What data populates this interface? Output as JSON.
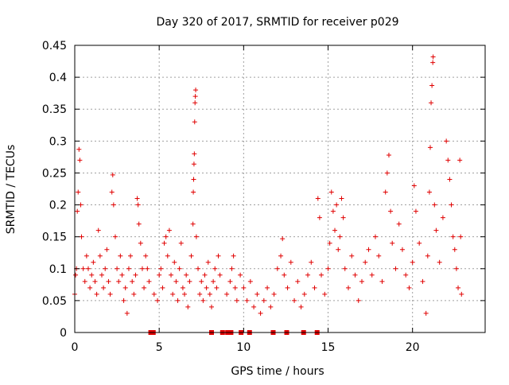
{
  "chart_data": {
    "type": "scatter",
    "title": "Day 320 of 2017, SRMTID for receiver p029",
    "xlabel": "GPS time / hours",
    "ylabel": "SRMTID / TECUs",
    "xlim": [
      0,
      24.3
    ],
    "ylim": [
      0,
      0.45
    ],
    "xticks": [
      0,
      5,
      10,
      15,
      20
    ],
    "xtick_labels": [
      "0",
      "5",
      "10",
      "15",
      "20"
    ],
    "yticks": [
      0,
      0.05,
      0.1,
      0.15,
      0.2,
      0.25,
      0.3,
      0.35,
      0.4,
      0.45
    ],
    "ytick_labels": [
      "0",
      "0.05",
      "0.1",
      "0.15",
      "0.2",
      "0.25",
      "0.3",
      "0.35",
      "0.4",
      "0.45"
    ],
    "grid": true,
    "marker": "+",
    "color": "#e00000",
    "series": [
      {
        "name": "SRMTID",
        "points": [
          [
            0.0,
            0.06
          ],
          [
            0.05,
            0.09
          ],
          [
            0.1,
            0.1
          ],
          [
            0.15,
            0.19
          ],
          [
            0.2,
            0.22
          ],
          [
            0.25,
            0.287
          ],
          [
            0.3,
            0.27
          ],
          [
            0.35,
            0.2
          ],
          [
            0.4,
            0.15
          ],
          [
            0.5,
            0.1
          ],
          [
            0.6,
            0.08
          ],
          [
            0.7,
            0.12
          ],
          [
            0.8,
            0.1
          ],
          [
            0.9,
            0.07
          ],
          [
            1.0,
            0.09
          ],
          [
            1.1,
            0.11
          ],
          [
            1.2,
            0.08
          ],
          [
            1.3,
            0.06
          ],
          [
            1.4,
            0.16
          ],
          [
            1.5,
            0.12
          ],
          [
            1.6,
            0.09
          ],
          [
            1.7,
            0.07
          ],
          [
            1.8,
            0.1
          ],
          [
            1.9,
            0.13
          ],
          [
            2.0,
            0.08
          ],
          [
            2.1,
            0.06
          ],
          [
            2.2,
            0.22
          ],
          [
            2.25,
            0.247
          ],
          [
            2.3,
            0.2
          ],
          [
            2.4,
            0.15
          ],
          [
            2.5,
            0.1
          ],
          [
            2.6,
            0.08
          ],
          [
            2.7,
            0.12
          ],
          [
            2.8,
            0.09
          ],
          [
            2.9,
            0.05
          ],
          [
            3.0,
            0.07
          ],
          [
            3.1,
            0.03
          ],
          [
            3.2,
            0.1
          ],
          [
            3.3,
            0.12
          ],
          [
            3.4,
            0.08
          ],
          [
            3.5,
            0.06
          ],
          [
            3.6,
            0.09
          ],
          [
            3.7,
            0.21
          ],
          [
            3.75,
            0.2
          ],
          [
            3.8,
            0.17
          ],
          [
            3.9,
            0.14
          ],
          [
            4.0,
            0.1
          ],
          [
            4.1,
            0.07
          ],
          [
            4.2,
            0.12
          ],
          [
            4.3,
            0.1
          ],
          [
            4.4,
            0.08
          ],
          [
            4.7,
            0.06
          ],
          [
            4.9,
            0.05
          ],
          [
            5.0,
            0.09
          ],
          [
            5.1,
            0.1
          ],
          [
            5.2,
            0.07
          ],
          [
            5.3,
            0.14
          ],
          [
            5.4,
            0.15
          ],
          [
            5.5,
            0.12
          ],
          [
            5.6,
            0.16
          ],
          [
            5.7,
            0.09
          ],
          [
            5.8,
            0.06
          ],
          [
            5.9,
            0.11
          ],
          [
            6.0,
            0.08
          ],
          [
            6.1,
            0.05
          ],
          [
            6.2,
            0.1
          ],
          [
            6.3,
            0.14
          ],
          [
            6.4,
            0.07
          ],
          [
            6.5,
            0.06
          ],
          [
            6.6,
            0.09
          ],
          [
            6.7,
            0.04
          ],
          [
            6.8,
            0.08
          ],
          [
            6.9,
            0.12
          ],
          [
            7.0,
            0.17
          ],
          [
            7.02,
            0.22
          ],
          [
            7.04,
            0.24
          ],
          [
            7.06,
            0.264
          ],
          [
            7.08,
            0.28
          ],
          [
            7.1,
            0.33
          ],
          [
            7.12,
            0.36
          ],
          [
            7.14,
            0.37
          ],
          [
            7.16,
            0.38
          ],
          [
            7.2,
            0.15
          ],
          [
            7.3,
            0.1
          ],
          [
            7.4,
            0.06
          ],
          [
            7.5,
            0.08
          ],
          [
            7.6,
            0.05
          ],
          [
            7.7,
            0.09
          ],
          [
            7.8,
            0.07
          ],
          [
            7.9,
            0.11
          ],
          [
            8.0,
            0.06
          ],
          [
            8.1,
            0.04
          ],
          [
            8.2,
            0.08
          ],
          [
            8.3,
            0.1
          ],
          [
            8.4,
            0.07
          ],
          [
            8.5,
            0.12
          ],
          [
            8.6,
            0.09
          ],
          [
            9.0,
            0.06
          ],
          [
            9.2,
            0.08
          ],
          [
            9.3,
            0.1
          ],
          [
            9.4,
            0.12
          ],
          [
            9.5,
            0.07
          ],
          [
            9.6,
            0.05
          ],
          [
            9.8,
            0.09
          ],
          [
            10.0,
            0.07
          ],
          [
            10.2,
            0.05
          ],
          [
            10.4,
            0.08
          ],
          [
            10.6,
            0.04
          ],
          [
            10.8,
            0.06
          ],
          [
            11.0,
            0.03
          ],
          [
            11.2,
            0.05
          ],
          [
            11.4,
            0.07
          ],
          [
            11.6,
            0.04
          ],
          [
            11.8,
            0.06
          ],
          [
            12.0,
            0.1
          ],
          [
            12.2,
            0.12
          ],
          [
            12.3,
            0.147
          ],
          [
            12.4,
            0.09
          ],
          [
            12.6,
            0.07
          ],
          [
            12.8,
            0.11
          ],
          [
            13.0,
            0.05
          ],
          [
            13.2,
            0.08
          ],
          [
            13.4,
            0.04
          ],
          [
            13.6,
            0.06
          ],
          [
            13.8,
            0.09
          ],
          [
            14.0,
            0.11
          ],
          [
            14.2,
            0.07
          ],
          [
            14.4,
            0.21
          ],
          [
            14.5,
            0.18
          ],
          [
            14.6,
            0.09
          ],
          [
            14.8,
            0.06
          ],
          [
            15.0,
            0.1
          ],
          [
            15.1,
            0.14
          ],
          [
            15.2,
            0.22
          ],
          [
            15.3,
            0.19
          ],
          [
            15.4,
            0.16
          ],
          [
            15.5,
            0.2
          ],
          [
            15.6,
            0.13
          ],
          [
            15.7,
            0.15
          ],
          [
            15.8,
            0.21
          ],
          [
            15.9,
            0.18
          ],
          [
            16.0,
            0.1
          ],
          [
            16.2,
            0.07
          ],
          [
            16.4,
            0.12
          ],
          [
            16.6,
            0.09
          ],
          [
            16.8,
            0.05
          ],
          [
            17.0,
            0.08
          ],
          [
            17.2,
            0.11
          ],
          [
            17.4,
            0.13
          ],
          [
            17.6,
            0.09
          ],
          [
            17.8,
            0.15
          ],
          [
            18.0,
            0.12
          ],
          [
            18.2,
            0.08
          ],
          [
            18.4,
            0.22
          ],
          [
            18.5,
            0.25
          ],
          [
            18.6,
            0.278
          ],
          [
            18.7,
            0.19
          ],
          [
            18.8,
            0.14
          ],
          [
            19.0,
            0.1
          ],
          [
            19.2,
            0.17
          ],
          [
            19.4,
            0.13
          ],
          [
            19.6,
            0.09
          ],
          [
            19.8,
            0.07
          ],
          [
            20.0,
            0.11
          ],
          [
            20.1,
            0.23
          ],
          [
            20.2,
            0.19
          ],
          [
            20.4,
            0.14
          ],
          [
            20.6,
            0.08
          ],
          [
            20.8,
            0.03
          ],
          [
            20.9,
            0.12
          ],
          [
            21.0,
            0.22
          ],
          [
            21.05,
            0.29
          ],
          [
            21.1,
            0.36
          ],
          [
            21.15,
            0.387
          ],
          [
            21.2,
            0.423
          ],
          [
            21.22,
            0.432
          ],
          [
            21.3,
            0.2
          ],
          [
            21.4,
            0.16
          ],
          [
            21.6,
            0.11
          ],
          [
            21.8,
            0.18
          ],
          [
            22.0,
            0.3
          ],
          [
            22.1,
            0.27
          ],
          [
            22.2,
            0.24
          ],
          [
            22.3,
            0.2
          ],
          [
            22.4,
            0.15
          ],
          [
            22.5,
            0.13
          ],
          [
            22.6,
            0.1
          ],
          [
            22.7,
            0.07
          ],
          [
            22.8,
            0.27
          ],
          [
            22.85,
            0.15
          ],
          [
            22.9,
            0.06
          ]
        ]
      }
    ],
    "gap_markers_x": [
      4.5,
      4.65,
      8.1,
      8.75,
      9.05,
      9.25,
      9.85,
      10.35,
      11.75,
      12.55,
      13.55,
      14.35
    ]
  }
}
